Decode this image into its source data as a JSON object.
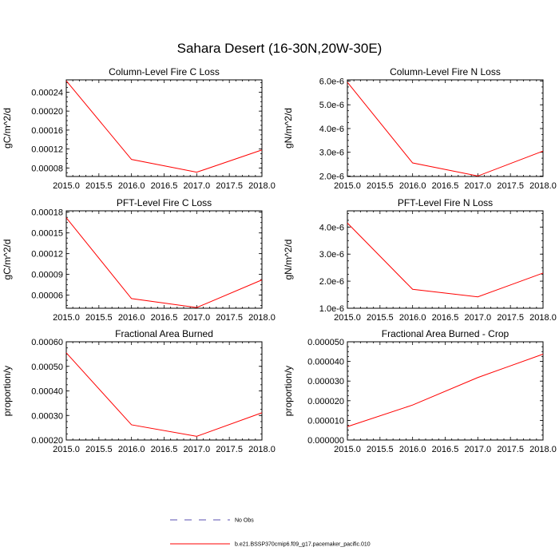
{
  "figure_title": "Sahara Desert (16-30N,20W-30E)",
  "chart_data": [
    {
      "type": "line",
      "title": "Column-Level Fire C Loss",
      "xlabel": "",
      "ylabel": "gC/m^2/d",
      "x": [
        2015.0,
        2016.0,
        2017.0,
        2018.0
      ],
      "series": [
        {
          "name": "b.e21.BSSP370cmip6.f09_g17.pacemaker_pacific.010",
          "values": [
            0.000264,
            9.8e-05,
            7.1e-05,
            0.000118
          ],
          "color": "#ff0000"
        }
      ],
      "xlim": [
        2015.0,
        2018.0
      ],
      "ylim": [
        6.2e-05,
        0.000266
      ],
      "xticks": [
        "2015.0",
        "2015.5",
        "2016.0",
        "2016.5",
        "2017.0",
        "2017.5",
        "2018.0"
      ],
      "yticks": [
        "0.00008",
        "0.00012",
        "0.00016",
        "0.00020",
        "0.00024"
      ],
      "ytick_values": [
        8e-05,
        0.00012,
        0.00016,
        0.0002,
        0.00024
      ]
    },
    {
      "type": "line",
      "title": "Column-Level Fire N Loss",
      "xlabel": "",
      "ylabel": "gN/m^2/d",
      "x": [
        2015.0,
        2016.0,
        2017.0,
        2018.0
      ],
      "series": [
        {
          "name": "b.e21.BSSP370cmip6.f09_g17.pacemaker_pacific.010",
          "values": [
            5.95e-06,
            2.55e-06,
            2e-06,
            3.05e-06
          ],
          "color": "#ff0000"
        }
      ],
      "xlim": [
        2015.0,
        2018.0
      ],
      "ylim": [
        1.98e-06,
        6.05e-06
      ],
      "xticks": [
        "2015.0",
        "2015.5",
        "2016.0",
        "2016.5",
        "2017.0",
        "2017.5",
        "2018.0"
      ],
      "yticks": [
        "2.0e-6",
        "3.0e-6",
        "4.0e-6",
        "5.0e-6",
        "6.0e-6"
      ],
      "ytick_values": [
        2e-06,
        3e-06,
        4e-06,
        5e-06,
        6e-06
      ]
    },
    {
      "type": "line",
      "title": "PFT-Level Fire C Loss",
      "xlabel": "",
      "ylabel": "gC/m^2/d",
      "x": [
        2015.0,
        2016.0,
        2017.0,
        2018.0
      ],
      "series": [
        {
          "name": "b.e21.BSSP370cmip6.f09_g17.pacemaker_pacific.010",
          "values": [
            0.000172,
            5.5e-05,
            4.2e-05,
            8.2e-05
          ],
          "color": "#ff0000"
        }
      ],
      "xlim": [
        2015.0,
        2018.0
      ],
      "ylim": [
        4.1e-05,
        0.000182
      ],
      "xticks": [
        "2015.0",
        "2015.5",
        "2016.0",
        "2016.5",
        "2017.0",
        "2017.5",
        "2018.0"
      ],
      "yticks": [
        "0.00006",
        "0.00009",
        "0.00012",
        "0.00015",
        "0.00018"
      ],
      "ytick_values": [
        6e-05,
        9e-05,
        0.00012,
        0.00015,
        0.00018
      ]
    },
    {
      "type": "line",
      "title": "PFT-Level Fire N Loss",
      "xlabel": "",
      "ylabel": "gN/m^2/d",
      "x": [
        2015.0,
        2016.0,
        2017.0,
        2018.0
      ],
      "series": [
        {
          "name": "b.e21.BSSP370cmip6.f09_g17.pacemaker_pacific.010",
          "values": [
            4.15e-06,
            1.7e-06,
            1.42e-06,
            2.3e-06
          ],
          "color": "#ff0000"
        }
      ],
      "xlim": [
        2015.0,
        2018.0
      ],
      "ylim": [
        1e-06,
        4.6e-06
      ],
      "xticks": [
        "2015.0",
        "2015.5",
        "2016.0",
        "2016.5",
        "2017.0",
        "2017.5",
        "2018.0"
      ],
      "yticks": [
        "1.0e-6",
        "2.0e-6",
        "3.0e-6",
        "4.0e-6"
      ],
      "ytick_values": [
        1e-06,
        2e-06,
        3e-06,
        4e-06
      ]
    },
    {
      "type": "line",
      "title": "Fractional Area Burned",
      "xlabel": "",
      "ylabel": "proportion/y",
      "x": [
        2015.0,
        2016.0,
        2017.0,
        2018.0
      ],
      "series": [
        {
          "name": "b.e21.BSSP370cmip6.f09_g17.pacemaker_pacific.010",
          "values": [
            0.000555,
            0.000262,
            0.000215,
            0.000311
          ],
          "color": "#ff0000"
        }
      ],
      "xlim": [
        2015.0,
        2018.0
      ],
      "ylim": [
        0.0002,
        0.0006
      ],
      "xticks": [
        "2015.0",
        "2015.5",
        "2016.0",
        "2016.5",
        "2017.0",
        "2017.5",
        "2018.0"
      ],
      "yticks": [
        "0.00020",
        "0.00030",
        "0.00040",
        "0.00050",
        "0.00060"
      ],
      "ytick_values": [
        0.0002,
        0.0003,
        0.0004,
        0.0005,
        0.0006
      ]
    },
    {
      "type": "line",
      "title": "Fractional Area Burned - Crop",
      "xlabel": "",
      "ylabel": "proportion/y",
      "x": [
        2015.0,
        2016.0,
        2017.0,
        2018.0
      ],
      "series": [
        {
          "name": "b.e21.BSSP370cmip6.f09_g17.pacemaker_pacific.010",
          "values": [
            6.8e-06,
            1.78e-05,
            3.18e-05,
            4.37e-05
          ],
          "color": "#ff0000"
        }
      ],
      "xlim": [
        2015.0,
        2018.0
      ],
      "ylim": [
        0.0,
        5e-05
      ],
      "xticks": [
        "2015.0",
        "2015.5",
        "2016.0",
        "2016.5",
        "2017.0",
        "2017.5",
        "2018.0"
      ],
      "yticks": [
        "0.000000",
        "0.000010",
        "0.000020",
        "0.000030",
        "0.000040",
        "0.000050"
      ],
      "ytick_values": [
        0.0,
        1e-05,
        2e-05,
        3e-05,
        4e-05,
        5e-05
      ]
    }
  ],
  "legend": {
    "placement": "bottom-center",
    "entries": [
      {
        "label": "No Obs",
        "style": "dashed",
        "color": "#5a4fb0"
      },
      {
        "label": "b.e21.BSSP370cmip6.f09_g17.pacemaker_pacific.010",
        "style": "solid",
        "color": "#ff0000"
      }
    ]
  }
}
